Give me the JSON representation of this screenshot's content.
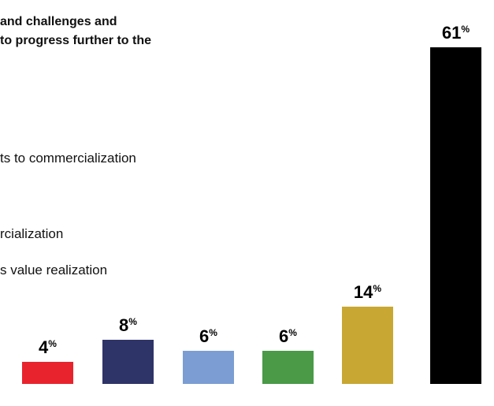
{
  "chart_data": {
    "type": "bar",
    "title_lines": [
      "and challenges and",
      "to progress further to the"
    ],
    "legend_fragments": [
      "ts to commercialization",
      "rcialization",
      "s value realization"
    ],
    "values": [
      4,
      8,
      6,
      6,
      14,
      61
    ],
    "value_suffix": "%",
    "colors": [
      "#e8232d",
      "#2f3468",
      "#7b9dd3",
      "#4a9a47",
      "#c8a832",
      "#000000"
    ],
    "ylim": [
      0,
      61
    ]
  }
}
